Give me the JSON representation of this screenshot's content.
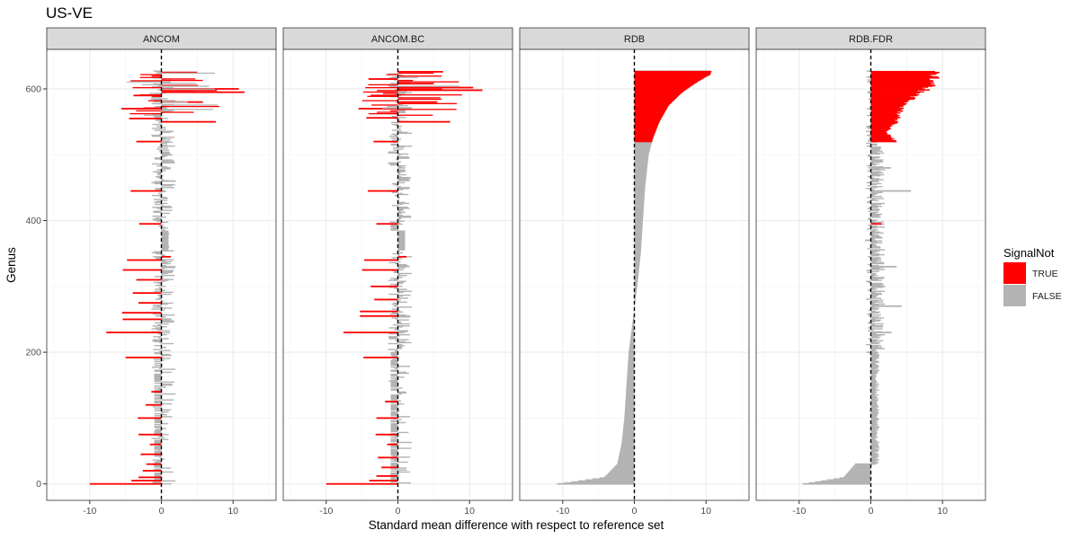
{
  "chart_data": {
    "type": "bar",
    "orientation": "horizontal",
    "title": "US-VE",
    "xlabel": "Standard mean difference with respect to reference set",
    "ylabel": "Genus",
    "xlim": [
      -16,
      16
    ],
    "ylim": [
      -25,
      660
    ],
    "x_ticks": [
      -10,
      0,
      10
    ],
    "y_ticks": [
      0,
      200,
      400,
      600
    ],
    "grid": true,
    "reference_line": 0,
    "legend": {
      "title": "SignalNot",
      "position": "right",
      "entries": [
        {
          "label": "TRUE",
          "color": "#ff0000"
        },
        {
          "label": "FALSE",
          "color": "#b3b3b3"
        }
      ]
    },
    "panels": [
      {
        "name": "ANCOM",
        "bars": [
          {
            "genus": 0,
            "value": -10.0,
            "signal": true
          },
          {
            "genus": 5,
            "value": -4.2,
            "signal": true
          },
          {
            "genus": 10,
            "value": -3.2,
            "signal": true
          },
          {
            "genus": 20,
            "value": -2.6,
            "signal": true
          },
          {
            "genus": 30,
            "value": -2.1,
            "signal": true
          },
          {
            "genus": 45,
            "value": -2.9,
            "signal": true
          },
          {
            "genus": 60,
            "value": -1.6,
            "signal": true
          },
          {
            "genus": 75,
            "value": -3.2,
            "signal": true
          },
          {
            "genus": 100,
            "value": -3.3,
            "signal": true
          },
          {
            "genus": 120,
            "value": -2.2,
            "signal": true
          },
          {
            "genus": 140,
            "value": -1.4,
            "signal": true
          },
          {
            "genus": 160,
            "value": -1.0,
            "signal": false
          },
          {
            "genus": 192,
            "value": -5.0,
            "signal": true
          },
          {
            "genus": 230,
            "value": -7.7,
            "signal": true
          },
          {
            "genus": 250,
            "value": -5.4,
            "signal": true
          },
          {
            "genus": 260,
            "value": -5.5,
            "signal": true
          },
          {
            "genus": 275,
            "value": -3.2,
            "signal": true
          },
          {
            "genus": 290,
            "value": -4.0,
            "signal": true
          },
          {
            "genus": 310,
            "value": -3.5,
            "signal": true
          },
          {
            "genus": 325,
            "value": -5.4,
            "signal": true
          },
          {
            "genus": 340,
            "value": -4.8,
            "signal": true
          },
          {
            "genus": 345,
            "value": 1.3,
            "signal": true
          },
          {
            "genus": 360,
            "value": 1.1,
            "signal": false
          },
          {
            "genus": 380,
            "value": 1.1,
            "signal": false
          },
          {
            "genus": 395,
            "value": -3.1,
            "signal": true
          },
          {
            "genus": 420,
            "value": 1.5,
            "signal": false
          },
          {
            "genus": 445,
            "value": -4.3,
            "signal": true
          },
          {
            "genus": 460,
            "value": 2.0,
            "signal": false
          },
          {
            "genus": 490,
            "value": 1.8,
            "signal": false
          },
          {
            "genus": 520,
            "value": -3.5,
            "signal": true
          },
          {
            "genus": 550,
            "value": 7.6,
            "signal": true
          },
          {
            "genus": 555,
            "value": -4.5,
            "signal": true
          },
          {
            "genus": 570,
            "value": -5.6,
            "signal": true
          },
          {
            "genus": 580,
            "value": 5.8,
            "signal": true
          },
          {
            "genus": 590,
            "value": -3.9,
            "signal": true
          },
          {
            "genus": 595,
            "value": 11.6,
            "signal": true
          },
          {
            "genus": 600,
            "value": 10.8,
            "signal": true
          },
          {
            "genus": 605,
            "value": 5.1,
            "signal": true
          },
          {
            "genus": 612,
            "value": -4.3,
            "signal": true
          },
          {
            "genus": 625,
            "value": 5.0,
            "signal": true
          }
        ]
      },
      {
        "name": "ANCOM.BC",
        "bars": [
          {
            "genus": 0,
            "value": -10.0,
            "signal": true
          },
          {
            "genus": 5,
            "value": -4.0,
            "signal": true
          },
          {
            "genus": 12,
            "value": -3.0,
            "signal": true
          },
          {
            "genus": 25,
            "value": -2.3,
            "signal": true
          },
          {
            "genus": 40,
            "value": -2.8,
            "signal": true
          },
          {
            "genus": 60,
            "value": -1.5,
            "signal": true
          },
          {
            "genus": 75,
            "value": -3.1,
            "signal": true
          },
          {
            "genus": 100,
            "value": -3.0,
            "signal": true
          },
          {
            "genus": 125,
            "value": -1.8,
            "signal": true
          },
          {
            "genus": 150,
            "value": -1.0,
            "signal": false
          },
          {
            "genus": 192,
            "value": -4.8,
            "signal": true
          },
          {
            "genus": 230,
            "value": -7.6,
            "signal": true
          },
          {
            "genus": 255,
            "value": -5.3,
            "signal": true
          },
          {
            "genus": 262,
            "value": -5.3,
            "signal": true
          },
          {
            "genus": 280,
            "value": -3.3,
            "signal": true
          },
          {
            "genus": 300,
            "value": -3.8,
            "signal": true
          },
          {
            "genus": 325,
            "value": -5.0,
            "signal": true
          },
          {
            "genus": 340,
            "value": -4.7,
            "signal": true
          },
          {
            "genus": 345,
            "value": 1.2,
            "signal": true
          },
          {
            "genus": 365,
            "value": 1.0,
            "signal": false
          },
          {
            "genus": 395,
            "value": -3.0,
            "signal": true
          },
          {
            "genus": 420,
            "value": 1.4,
            "signal": false
          },
          {
            "genus": 445,
            "value": -4.2,
            "signal": true
          },
          {
            "genus": 465,
            "value": 1.8,
            "signal": false
          },
          {
            "genus": 495,
            "value": 1.6,
            "signal": false
          },
          {
            "genus": 520,
            "value": -3.4,
            "signal": true
          },
          {
            "genus": 550,
            "value": 7.3,
            "signal": true
          },
          {
            "genus": 556,
            "value": -4.4,
            "signal": true
          },
          {
            "genus": 570,
            "value": -5.5,
            "signal": true
          },
          {
            "genus": 580,
            "value": 5.5,
            "signal": true
          },
          {
            "genus": 590,
            "value": -3.8,
            "signal": true
          },
          {
            "genus": 598,
            "value": 11.8,
            "signal": true
          },
          {
            "genus": 602,
            "value": 10.5,
            "signal": true
          },
          {
            "genus": 608,
            "value": 5.0,
            "signal": true
          },
          {
            "genus": 615,
            "value": -4.1,
            "signal": true
          },
          {
            "genus": 626,
            "value": 6.3,
            "signal": true
          }
        ]
      },
      {
        "name": "RDB",
        "bars": [
          {
            "genus": 0,
            "value": -10.8,
            "signal": false
          },
          {
            "genus": 10,
            "value": -4.2,
            "signal": false
          },
          {
            "genus": 30,
            "value": -2.4,
            "signal": false
          },
          {
            "genus": 60,
            "value": -1.8,
            "signal": false
          },
          {
            "genus": 100,
            "value": -1.4,
            "signal": false
          },
          {
            "genus": 150,
            "value": -1.1,
            "signal": false
          },
          {
            "genus": 200,
            "value": -0.8,
            "signal": false
          },
          {
            "genus": 250,
            "value": -0.2,
            "signal": false
          },
          {
            "genus": 300,
            "value": 0.4,
            "signal": false
          },
          {
            "genus": 350,
            "value": 0.9,
            "signal": false
          },
          {
            "genus": 400,
            "value": 1.2,
            "signal": false
          },
          {
            "genus": 450,
            "value": 1.5,
            "signal": false
          },
          {
            "genus": 500,
            "value": 2.0,
            "signal": false
          },
          {
            "genus": 525,
            "value": 2.6,
            "signal": true
          },
          {
            "genus": 550,
            "value": 3.5,
            "signal": true
          },
          {
            "genus": 575,
            "value": 4.8,
            "signal": true
          },
          {
            "genus": 595,
            "value": 6.7,
            "signal": true
          },
          {
            "genus": 610,
            "value": 8.7,
            "signal": true
          },
          {
            "genus": 622,
            "value": 10.6,
            "signal": true
          }
        ]
      },
      {
        "name": "RDB.FDR",
        "bars": [
          {
            "genus": 0,
            "value": -9.5,
            "signal": false
          },
          {
            "genus": 10,
            "value": -3.8,
            "signal": false
          },
          {
            "genus": 30,
            "value": -2.2,
            "signal": false
          },
          {
            "genus": 60,
            "value": 0.8,
            "signal": false
          },
          {
            "genus": 90,
            "value": 1.0,
            "signal": false
          },
          {
            "genus": 120,
            "value": 0.8,
            "signal": false
          },
          {
            "genus": 150,
            "value": 0.6,
            "signal": false
          },
          {
            "genus": 200,
            "value": -0.6,
            "signal": false
          },
          {
            "genus": 230,
            "value": 2.9,
            "signal": false
          },
          {
            "genus": 270,
            "value": 4.3,
            "signal": false
          },
          {
            "genus": 300,
            "value": 2.0,
            "signal": false
          },
          {
            "genus": 330,
            "value": 3.6,
            "signal": false
          },
          {
            "genus": 370,
            "value": -0.8,
            "signal": false
          },
          {
            "genus": 395,
            "value": 1.5,
            "signal": true
          },
          {
            "genus": 420,
            "value": 1.0,
            "signal": false
          },
          {
            "genus": 445,
            "value": 5.6,
            "signal": false
          },
          {
            "genus": 480,
            "value": 2.8,
            "signal": false
          },
          {
            "genus": 520,
            "value": 3.5,
            "signal": false
          },
          {
            "genus": 535,
            "value": 2.2,
            "signal": true
          },
          {
            "genus": 550,
            "value": 3.8,
            "signal": true
          },
          {
            "genus": 570,
            "value": 4.4,
            "signal": true
          },
          {
            "genus": 590,
            "value": 6.5,
            "signal": true
          },
          {
            "genus": 605,
            "value": 9.0,
            "signal": true
          },
          {
            "genus": 618,
            "value": 9.4,
            "signal": true
          }
        ]
      }
    ]
  }
}
